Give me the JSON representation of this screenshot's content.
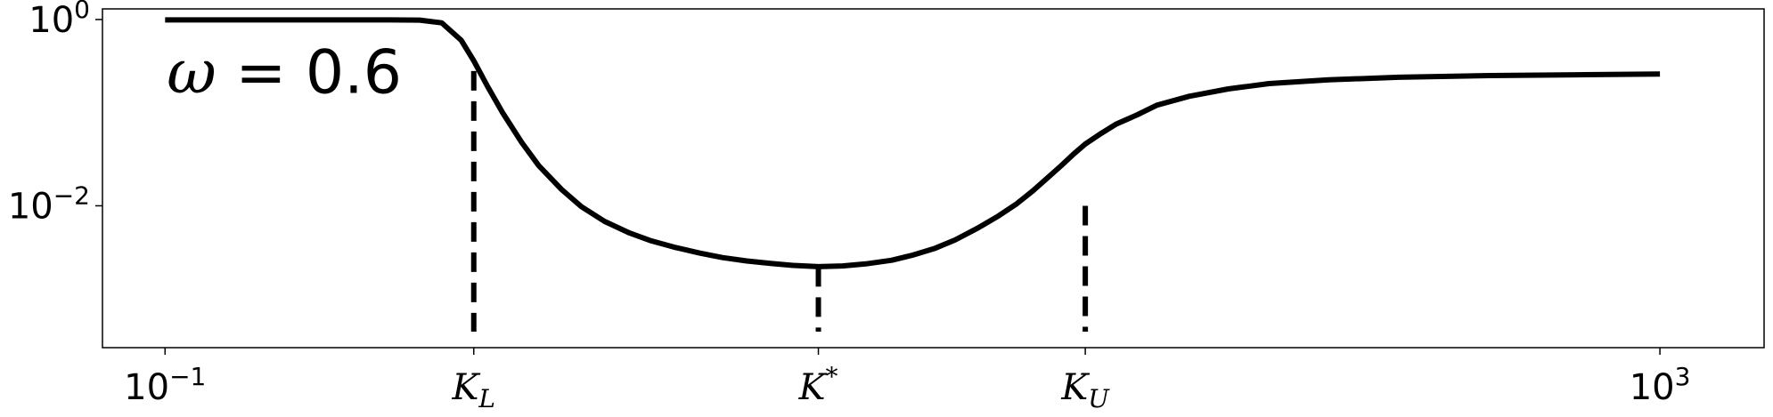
{
  "chart_data": {
    "type": "line",
    "xscale": "log",
    "yscale": "log",
    "xlim": [
      0.068,
      1900
    ],
    "ylim": [
      0.0003,
      1.3
    ],
    "x_ticks": [
      {
        "value": 0.1,
        "base": "10",
        "exp": "−1"
      },
      {
        "value": 0.67,
        "sym": "K",
        "sub": "L",
        "sup": ""
      },
      {
        "value": 5.6,
        "sym": "K",
        "sub": "",
        "sup": "*"
      },
      {
        "value": 29,
        "sym": "K",
        "sub": "U",
        "sup": ""
      },
      {
        "value": 1000,
        "base": "10",
        "exp": "3"
      }
    ],
    "y_ticks": [
      {
        "value": 1,
        "base": "10",
        "exp": "0"
      },
      {
        "value": 0.01,
        "base": "10",
        "exp": "−2"
      }
    ],
    "annotation": {
      "symbol": "ω",
      "text": " = 0.6",
      "x": 0.1,
      "y": 0.3
    },
    "series": [
      {
        "color": "#000000",
        "x": [
          0.1,
          0.15,
          0.2,
          0.3,
          0.4,
          0.48,
          0.55,
          0.62,
          0.67,
          0.73,
          0.8,
          0.9,
          1.0,
          1.15,
          1.3,
          1.5,
          1.75,
          2.0,
          2.3,
          2.7,
          3.1,
          3.6,
          4.2,
          4.8,
          5.6,
          6.5,
          7.5,
          8.8,
          10,
          11.5,
          13,
          15,
          17,
          19,
          21,
          23,
          25,
          27,
          29,
          32,
          35,
          40,
          45,
          55,
          70,
          90,
          130,
          200,
          350,
          600,
          1000
        ],
        "y": [
          0.99,
          0.99,
          0.99,
          0.99,
          0.99,
          0.985,
          0.92,
          0.6,
          0.36,
          0.19,
          0.1,
          0.048,
          0.027,
          0.015,
          0.0098,
          0.0068,
          0.0051,
          0.0042,
          0.0036,
          0.0031,
          0.00278,
          0.00256,
          0.0024,
          0.00229,
          0.00222,
          0.00226,
          0.00238,
          0.0026,
          0.00295,
          0.0035,
          0.0043,
          0.0058,
          0.0078,
          0.0105,
          0.0145,
          0.02,
          0.027,
          0.036,
          0.046,
          0.06,
          0.075,
          0.095,
          0.12,
          0.15,
          0.18,
          0.205,
          0.225,
          0.24,
          0.25,
          0.255,
          0.26
        ]
      }
    ],
    "vlines": [
      {
        "x": 0.67,
        "y_top": 0.28
      },
      {
        "x": 5.6,
        "y_top": 0.0022
      },
      {
        "x": 29,
        "y_top": 0.01
      }
    ]
  }
}
